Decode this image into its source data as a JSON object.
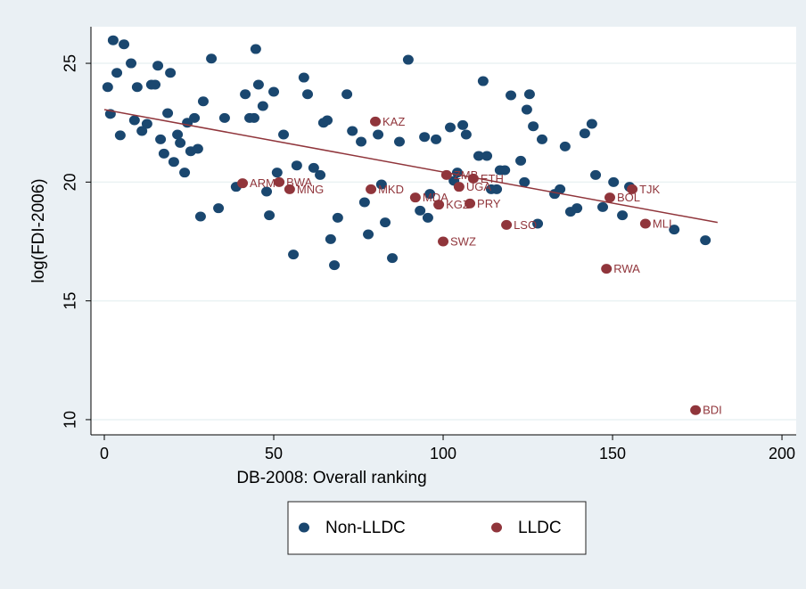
{
  "chart_data": {
    "type": "scatter",
    "x_label": "DB-2008: Overall ranking",
    "y_label": "log(FDI-2006)",
    "xlim": [
      -3.95,
      204.2
    ],
    "ylim": [
      9.36,
      26.54
    ],
    "xticks": [
      0,
      50,
      100,
      150,
      200
    ],
    "yticks": [
      10,
      15,
      20,
      25
    ],
    "grid": true,
    "legend": "bottom",
    "series": [
      {
        "name": "Non-LLDC",
        "color": "#1a476f",
        "x": [
          1,
          1.8,
          2.6,
          3.7,
          4.7,
          5.8,
          7.9,
          8.9,
          9.7,
          11.1,
          12.6,
          13.9,
          15,
          15.8,
          16.6,
          17.6,
          18.7,
          19.5,
          20.5,
          21.6,
          22.4,
          23.7,
          24.5,
          25.5,
          26.6,
          27.6,
          28.4,
          29.2,
          31.6,
          33.7,
          35.5,
          38.9,
          41.6,
          42.9,
          44.2,
          44.7,
          45.5,
          46.8,
          47.9,
          48.7,
          50,
          51,
          52.9,
          55.8,
          56.8,
          58.9,
          60,
          61.8,
          63.7,
          64.7,
          65.8,
          66.8,
          67.9,
          68.9,
          71.6,
          73.2,
          75.8,
          76.8,
          77.9,
          80.8,
          81.8,
          82.9,
          85,
          87.1,
          89.7,
          93.2,
          94.5,
          95.5,
          96.1,
          97.9,
          102.1,
          103.2,
          104.2,
          105.8,
          106.8,
          110.5,
          111.8,
          112.9,
          114.2,
          115.8,
          116.8,
          118.2,
          120,
          122.9,
          124,
          124.7,
          125.5,
          126.6,
          127.9,
          129.2,
          132.9,
          134.5,
          136,
          137.6,
          139.5,
          141.8,
          143.9,
          145,
          147.1,
          150.3,
          152.9,
          155,
          168.2,
          177.4
        ],
        "values": [
          24.0,
          22.87,
          25.97,
          24.6,
          21.97,
          25.8,
          25.0,
          22.6,
          24.0,
          22.15,
          22.45,
          24.1,
          24.1,
          24.9,
          21.8,
          21.2,
          22.9,
          24.6,
          20.85,
          22.0,
          21.65,
          20.4,
          22.5,
          21.3,
          22.7,
          21.4,
          18.55,
          23.4,
          25.2,
          18.9,
          22.7,
          19.8,
          23.7,
          22.7,
          22.7,
          25.6,
          24.1,
          23.2,
          19.6,
          18.6,
          23.8,
          20.4,
          22.0,
          16.95,
          20.7,
          24.4,
          23.7,
          20.6,
          20.3,
          22.5,
          22.6,
          17.6,
          16.5,
          18.5,
          23.7,
          22.15,
          21.7,
          19.15,
          17.8,
          22.0,
          19.9,
          18.3,
          16.8,
          21.7,
          25.15,
          18.8,
          21.9,
          18.5,
          19.5,
          21.8,
          22.3,
          20.05,
          20.4,
          22.4,
          22.0,
          21.1,
          24.25,
          21.1,
          19.7,
          19.7,
          20.5,
          20.5,
          23.65,
          20.9,
          20.0,
          23.05,
          23.7,
          22.35,
          18.25,
          21.8,
          19.5,
          19.7,
          21.5,
          18.75,
          18.9,
          22.05,
          22.45,
          20.3,
          18.95,
          20.0,
          18.6,
          19.8,
          18.0,
          17.55
        ]
      },
      {
        "name": "LLDC",
        "color": "#90353b",
        "x": [
          40.8,
          51.6,
          54.7,
          80,
          78.7,
          91.8,
          98.7,
          100,
          107.9,
          101,
          104.7,
          108.9,
          118.7,
          148.2,
          149.2,
          155.8,
          159.7,
          174.5
        ],
        "values": [
          19.95,
          20.0,
          19.7,
          22.55,
          19.7,
          19.35,
          19.05,
          17.5,
          19.1,
          20.3,
          19.8,
          20.15,
          18.2,
          16.35,
          19.35,
          19.7,
          18.25,
          10.4
        ],
        "labels": [
          "ARM",
          "BWA",
          "MNG",
          "KAZ",
          "MKD",
          "MDA",
          "KGZ",
          "SWZ",
          "PRY",
          "ZMB",
          "UGA",
          "ETH",
          "LSO",
          "RWA",
          "BOL",
          "TJK",
          "MLI",
          "BDI"
        ]
      }
    ],
    "fit": {
      "color": "#90353b",
      "x": [
        0,
        181
      ],
      "values": [
        23.05,
        18.3
      ]
    }
  }
}
